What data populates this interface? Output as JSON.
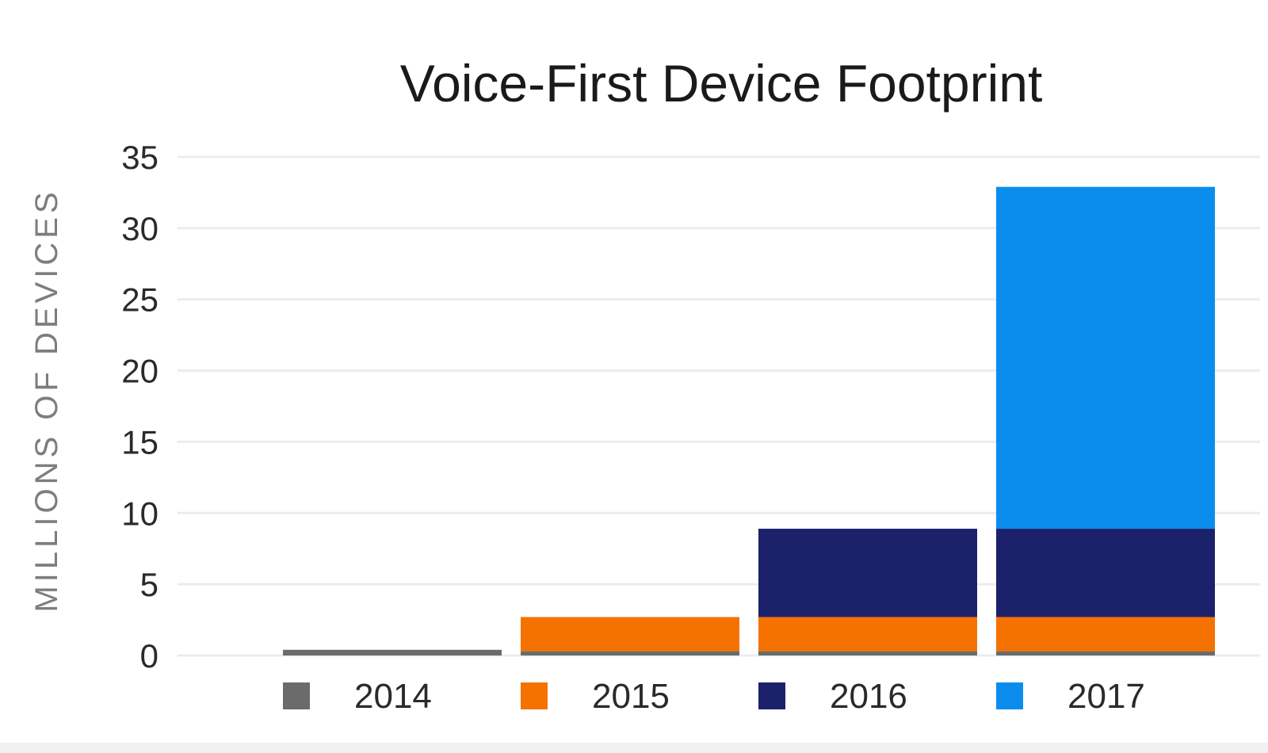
{
  "chart_data": {
    "type": "bar",
    "stacked": true,
    "title": "Voice-First Device Footprint",
    "xlabel": "",
    "ylabel": "MILLIONS OF DEVICES",
    "ylim": [
      0,
      35
    ],
    "yticks": [
      0,
      5,
      10,
      15,
      20,
      25,
      30,
      35
    ],
    "categories": [
      "2014",
      "2015",
      "2016",
      "2017"
    ],
    "series": [
      {
        "name": "2014",
        "color": "#6b6b6b",
        "values": [
          0.4,
          0.3,
          0.3,
          0.3
        ]
      },
      {
        "name": "2015",
        "color": "#f57200",
        "values": [
          0,
          2.4,
          2.4,
          2.4
        ]
      },
      {
        "name": "2016",
        "color": "#1c216b",
        "values": [
          0,
          0,
          6.2,
          6.2
        ]
      },
      {
        "name": "2017",
        "color": "#0b8ded",
        "values": [
          0,
          0,
          0,
          24.0
        ]
      }
    ],
    "grid": true,
    "legend_position": "bottom"
  },
  "colors": {
    "grid": "#ececec",
    "tick_text": "#2a2a2a",
    "ylabel_text": "#7d7d7d",
    "title_text": "#1a1a1a"
  }
}
